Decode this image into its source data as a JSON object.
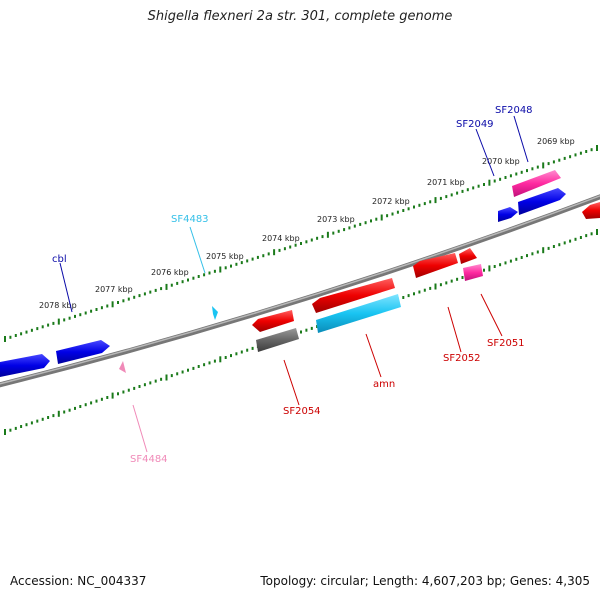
{
  "title": "Shigella flexneri 2a str. 301, complete genome",
  "footer": {
    "accession": "Accession: NC_004337",
    "summary": "Topology: circular; Length: 4,607,203 bp; Genes: 4,305"
  },
  "ticks": [
    "2069 kbp",
    "2070 kbp",
    "2071 kbp",
    "2072 kbp",
    "2073 kbp",
    "2074 kbp",
    "2075 kbp",
    "2076 kbp",
    "2077 kbp",
    "2078 kbp"
  ],
  "genes": [
    {
      "name": "SF2048",
      "color": "#0a0aa8"
    },
    {
      "name": "SF2049",
      "color": "#0a0aa8"
    },
    {
      "name": "SF4483",
      "color": "#35c0e8"
    },
    {
      "name": "cbl",
      "color": "#0a0aa8"
    },
    {
      "name": "SF4484",
      "color": "#f08ab8"
    },
    {
      "name": "SF2054",
      "color": "#cc0000"
    },
    {
      "name": "amn",
      "color": "#cc0000"
    },
    {
      "name": "SF2052",
      "color": "#cc0000"
    },
    {
      "name": "SF2051",
      "color": "#cc0000"
    }
  ],
  "colors": {
    "forward_gene": "#0000e0",
    "reverse_gene": "#ee0000",
    "pseudogene_pink": "#ff3aa8",
    "cyan_gene": "#19c4f2",
    "gray_gene": "#666666",
    "tick": "#1a7a1a",
    "backbone": "#888888"
  }
}
